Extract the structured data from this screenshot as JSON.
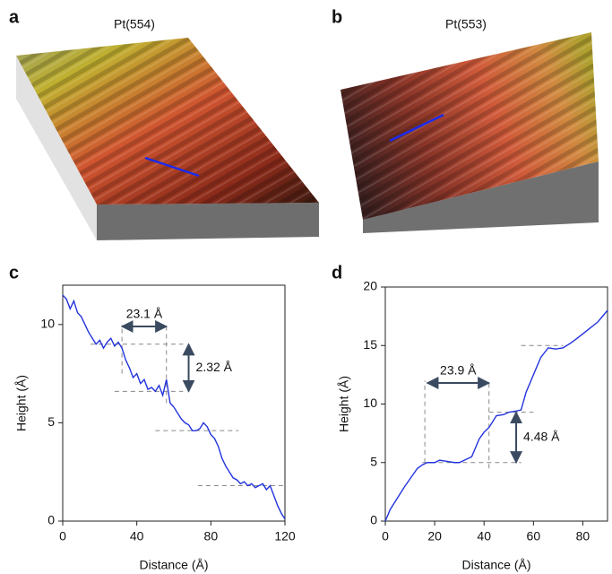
{
  "panels": [
    {
      "label": "a",
      "title": "Pt(554)"
    },
    {
      "label": "b",
      "title": "Pt(553)"
    }
  ],
  "chart_data": [
    {
      "type": "line",
      "label": "c",
      "x_label": "Distance (Å)",
      "y_label": "Height (Å)",
      "x": [
        0,
        2,
        4,
        6,
        8,
        10,
        12,
        14,
        16,
        18,
        20,
        22,
        24,
        26,
        28,
        30,
        32,
        34,
        36,
        38,
        40,
        42,
        44,
        46,
        48,
        50,
        52,
        54,
        56,
        58,
        60,
        62,
        64,
        66,
        68,
        70,
        72,
        74,
        76,
        78,
        80,
        82,
        84,
        86,
        88,
        90,
        92,
        94,
        96,
        98,
        100,
        102,
        104,
        106,
        108,
        110,
        112,
        114,
        116,
        118,
        120
      ],
      "series": [
        {
          "color": "#2233dd",
          "values": [
            11.5,
            11.3,
            10.8,
            11.2,
            10.6,
            10.4,
            10.0,
            9.6,
            9.3,
            9.0,
            9.2,
            8.8,
            9.1,
            9.3,
            8.9,
            9.1,
            8.8,
            8.2,
            7.8,
            7.3,
            7.5,
            7.0,
            7.2,
            6.7,
            6.8,
            6.6,
            6.9,
            6.4,
            7.2,
            6.0,
            5.8,
            5.5,
            5.2,
            5.0,
            4.9,
            4.6,
            4.6,
            4.7,
            5.0,
            4.8,
            4.4,
            4.2,
            3.8,
            3.2,
            2.8,
            2.5,
            2.2,
            2.1,
            1.9,
            2.0,
            1.8,
            1.9,
            1.7,
            1.8,
            1.9,
            1.6,
            1.8,
            1.3,
            0.8,
            0.4,
            0.1
          ]
        }
      ],
      "xlim": [
        0,
        120
      ],
      "xticks": [
        0,
        40,
        80,
        120
      ],
      "ylim": [
        0,
        12
      ],
      "yticks": [
        0,
        5,
        10
      ],
      "guides": [
        {
          "x": [
            15,
            65
          ],
          "y": [
            9,
            9
          ]
        },
        {
          "x": [
            28,
            65
          ],
          "y": [
            6.6,
            6.6
          ]
        },
        {
          "x": [
            50,
            95
          ],
          "y": [
            4.6,
            4.6
          ]
        },
        {
          "x": [
            73,
            120
          ],
          "y": [
            1.8,
            1.8
          ]
        },
        {
          "x": [
            32,
            32
          ],
          "y": [
            7.5,
            10
          ]
        },
        {
          "x": [
            56,
            56
          ],
          "y": [
            6,
            10
          ]
        }
      ],
      "annotations": [
        {
          "text": "23.1 Å",
          "x": [
            32,
            56
          ],
          "y": [
            9.9,
            9.9
          ]
        },
        {
          "text": "2.32 Å",
          "x": [
            68,
            68
          ],
          "y": [
            9,
            6.6
          ]
        }
      ]
    },
    {
      "type": "line",
      "label": "d",
      "x_label": "Distance (Å)",
      "y_label": "Height (Å)",
      "x": [
        0,
        2,
        5,
        8,
        10,
        13,
        15,
        17,
        20,
        22,
        25,
        28,
        30,
        33,
        35,
        38,
        40,
        42,
        45,
        48,
        50,
        53,
        55,
        57,
        60,
        63,
        66,
        69,
        72,
        75,
        77,
        80,
        83,
        86,
        88,
        90
      ],
      "series": [
        {
          "color": "#2233dd",
          "values": [
            0,
            1.0,
            2.0,
            3.0,
            3.6,
            4.5,
            4.8,
            5.0,
            5.0,
            5.2,
            5.1,
            5.0,
            5.0,
            5.3,
            5.5,
            7.0,
            7.6,
            8.0,
            9.0,
            9.1,
            9.3,
            9.4,
            9.5,
            11.0,
            12.5,
            14.0,
            14.8,
            14.7,
            14.8,
            15.2,
            15.5,
            16.0,
            16.5,
            17.0,
            17.5,
            18.0
          ]
        }
      ],
      "xlim": [
        0,
        90
      ],
      "xticks": [
        0,
        20,
        40,
        60,
        80
      ],
      "ylim": [
        0,
        20
      ],
      "yticks": [
        0,
        5,
        10,
        15,
        20
      ],
      "guides": [
        {
          "x": [
            15,
            55
          ],
          "y": [
            5,
            5
          ]
        },
        {
          "x": [
            42,
            60
          ],
          "y": [
            9.3,
            9.3
          ]
        },
        {
          "x": [
            55,
            72
          ],
          "y": [
            15,
            15
          ]
        },
        {
          "x": [
            16,
            16
          ],
          "y": [
            5,
            12
          ]
        },
        {
          "x": [
            42,
            42
          ],
          "y": [
            4.5,
            12
          ]
        }
      ],
      "annotations": [
        {
          "text": "23.9 Å",
          "x": [
            17,
            42
          ],
          "y": [
            11.8,
            11.8
          ]
        },
        {
          "text": "4.48 Å",
          "x": [
            53,
            53
          ],
          "y": [
            5,
            9.3
          ]
        }
      ]
    }
  ]
}
